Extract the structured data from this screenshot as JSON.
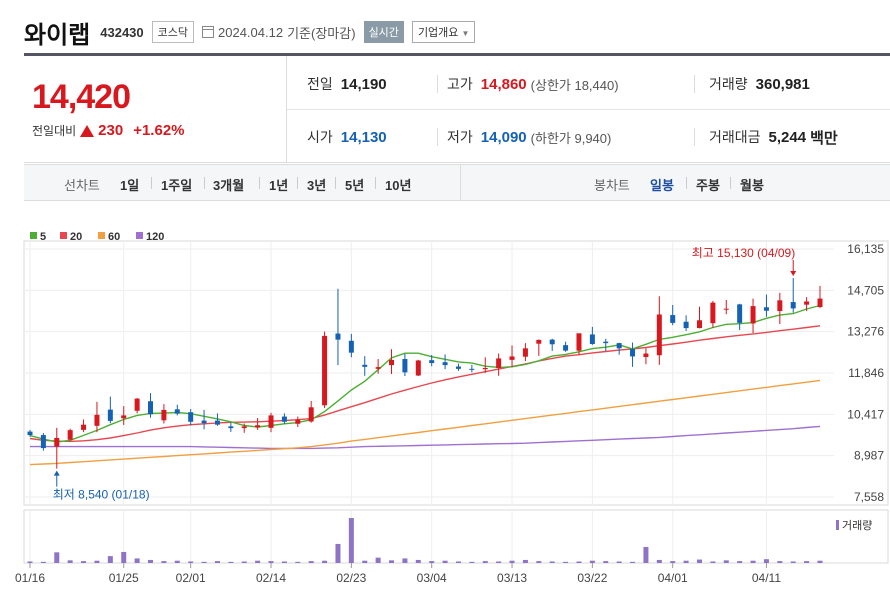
{
  "header": {
    "name": "와이랩",
    "code": "432430",
    "market": "코스닥",
    "date": "2024.04.12",
    "basis": "기준(장마감)",
    "realtime_label": "실시간",
    "company_label": "기업개요"
  },
  "quote": {
    "current": "14,420",
    "change_label": "전일대비",
    "change": "230",
    "change_pct": "+1.62%",
    "prev_close_label": "전일",
    "prev_close": "14,190",
    "high_label": "고가",
    "high": "14,860",
    "upper_limit_label": "(상한가 18,440)",
    "volume_label": "거래량",
    "volume": "360,981",
    "open_label": "시가",
    "open": "14,130",
    "low_label": "저가",
    "low": "14,090",
    "lower_limit_label": "(하한가 9,940)",
    "value_label": "거래대금",
    "value": "5,244",
    "value_unit": "백만"
  },
  "period_bar": {
    "line_label": "선차트",
    "line_periods": [
      "1일",
      "1주일",
      "3개월",
      "1년",
      "3년",
      "5년",
      "10년"
    ],
    "candle_label": "봉차트",
    "candle_periods": [
      "일봉",
      "주봉",
      "월봉"
    ],
    "active_candle": "일봉"
  },
  "colors": {
    "up": "#d7181e",
    "down": "#1561b3",
    "ma5": "#4caf34",
    "ma20": "#e8474f",
    "ma60": "#f0a040",
    "ma120": "#a070d0",
    "volume": "#8d74c7"
  },
  "chart_data": {
    "type": "candlestick",
    "legend": [
      "5",
      "20",
      "60",
      "120"
    ],
    "y_ticks": [
      "16,135",
      "14,705",
      "13,276",
      "11,846",
      "10,417",
      "8,987",
      "7,558"
    ],
    "ylim": [
      7558,
      16135
    ],
    "x_ticks": [
      "01/16",
      "01/25",
      "02/01",
      "02/14",
      "02/23",
      "03/04",
      "03/13",
      "03/22",
      "04/01",
      "04/11"
    ],
    "x_tick_index": [
      0,
      7,
      12,
      18,
      24,
      30,
      36,
      42,
      48,
      55
    ],
    "max_annotation": "최고 15,130 (04/09)",
    "min_annotation": "최저 8,540 (01/18)",
    "volume_label": "거래량",
    "candles": [
      {
        "o": 9820,
        "h": 9880,
        "l": 9640,
        "c": 9700
      },
      {
        "o": 9700,
        "h": 9770,
        "l": 9160,
        "c": 9250
      },
      {
        "o": 9300,
        "h": 9950,
        "l": 8540,
        "c": 9600
      },
      {
        "o": 9540,
        "h": 9920,
        "l": 9500,
        "c": 9870
      },
      {
        "o": 9880,
        "h": 10240,
        "l": 9800,
        "c": 10060
      },
      {
        "o": 10020,
        "h": 10850,
        "l": 9800,
        "c": 10400
      },
      {
        "o": 10580,
        "h": 11030,
        "l": 10110,
        "c": 10190
      },
      {
        "o": 10280,
        "h": 10700,
        "l": 10050,
        "c": 10380
      },
      {
        "o": 10540,
        "h": 10980,
        "l": 10450,
        "c": 10960
      },
      {
        "o": 10870,
        "h": 11150,
        "l": 10300,
        "c": 10420
      },
      {
        "o": 10210,
        "h": 10770,
        "l": 10100,
        "c": 10570
      },
      {
        "o": 10590,
        "h": 10750,
        "l": 10380,
        "c": 10440
      },
      {
        "o": 10490,
        "h": 10600,
        "l": 10030,
        "c": 10160
      },
      {
        "o": 10200,
        "h": 10570,
        "l": 9900,
        "c": 10110
      },
      {
        "o": 10200,
        "h": 10450,
        "l": 10020,
        "c": 10060
      },
      {
        "o": 10000,
        "h": 10130,
        "l": 9810,
        "c": 9940
      },
      {
        "o": 9940,
        "h": 10100,
        "l": 9780,
        "c": 10000
      },
      {
        "o": 9960,
        "h": 10290,
        "l": 9880,
        "c": 10040
      },
      {
        "o": 9950,
        "h": 10470,
        "l": 9800,
        "c": 10380
      },
      {
        "o": 10340,
        "h": 10450,
        "l": 10090,
        "c": 10160
      },
      {
        "o": 10090,
        "h": 10340,
        "l": 9980,
        "c": 10230
      },
      {
        "o": 10170,
        "h": 10880,
        "l": 10130,
        "c": 10660
      },
      {
        "o": 10730,
        "h": 13280,
        "l": 10640,
        "c": 13130
      },
      {
        "o": 13210,
        "h": 14760,
        "l": 12120,
        "c": 13000
      },
      {
        "o": 12960,
        "h": 13200,
        "l": 12390,
        "c": 12550
      },
      {
        "o": 12130,
        "h": 12430,
        "l": 11750,
        "c": 12060
      },
      {
        "o": 11990,
        "h": 12330,
        "l": 11820,
        "c": 12050
      },
      {
        "o": 12120,
        "h": 12670,
        "l": 11810,
        "c": 12300
      },
      {
        "o": 12330,
        "h": 12510,
        "l": 11740,
        "c": 11870
      },
      {
        "o": 11760,
        "h": 12300,
        "l": 11740,
        "c": 12280
      },
      {
        "o": 12290,
        "h": 12470,
        "l": 12080,
        "c": 12190
      },
      {
        "o": 12220,
        "h": 12490,
        "l": 11980,
        "c": 12120
      },
      {
        "o": 12070,
        "h": 12170,
        "l": 11920,
        "c": 11990
      },
      {
        "o": 11990,
        "h": 12130,
        "l": 11870,
        "c": 11980
      },
      {
        "o": 11980,
        "h": 12390,
        "l": 11850,
        "c": 12020
      },
      {
        "o": 12020,
        "h": 12520,
        "l": 11750,
        "c": 12350
      },
      {
        "o": 12300,
        "h": 12800,
        "l": 12050,
        "c": 12420
      },
      {
        "o": 12410,
        "h": 12880,
        "l": 12260,
        "c": 12700
      },
      {
        "o": 12860,
        "h": 13010,
        "l": 12440,
        "c": 12990
      },
      {
        "o": 13000,
        "h": 13030,
        "l": 12610,
        "c": 12840
      },
      {
        "o": 12810,
        "h": 12930,
        "l": 12580,
        "c": 12620
      },
      {
        "o": 12620,
        "h": 13200,
        "l": 12470,
        "c": 13220
      },
      {
        "o": 13180,
        "h": 13440,
        "l": 12820,
        "c": 12850
      },
      {
        "o": 12930,
        "h": 13030,
        "l": 12600,
        "c": 12880
      },
      {
        "o": 12880,
        "h": 12890,
        "l": 12480,
        "c": 12700
      },
      {
        "o": 12680,
        "h": 12900,
        "l": 12060,
        "c": 12420
      },
      {
        "o": 12400,
        "h": 12700,
        "l": 12150,
        "c": 12520
      },
      {
        "o": 12460,
        "h": 14500,
        "l": 12130,
        "c": 13870
      },
      {
        "o": 13850,
        "h": 14200,
        "l": 13500,
        "c": 13580
      },
      {
        "o": 13620,
        "h": 13840,
        "l": 13300,
        "c": 13400
      },
      {
        "o": 13400,
        "h": 14140,
        "l": 13390,
        "c": 13670
      },
      {
        "o": 13570,
        "h": 14340,
        "l": 13410,
        "c": 14280
      },
      {
        "o": 14070,
        "h": 14370,
        "l": 13880,
        "c": 14070
      },
      {
        "o": 14220,
        "h": 14240,
        "l": 13330,
        "c": 13580
      },
      {
        "o": 13560,
        "h": 14420,
        "l": 13230,
        "c": 14160
      },
      {
        "o": 14120,
        "h": 14560,
        "l": 13790,
        "c": 14000
      },
      {
        "o": 13990,
        "h": 14620,
        "l": 13540,
        "c": 14360
      },
      {
        "o": 14300,
        "h": 15130,
        "l": 13930,
        "c": 14080
      },
      {
        "o": 14210,
        "h": 14470,
        "l": 13990,
        "c": 14320
      },
      {
        "o": 14130,
        "h": 14860,
        "l": 14090,
        "c": 14420
      }
    ],
    "volumes": [
      4,
      3,
      28,
      7,
      5,
      6,
      18,
      29,
      12,
      8,
      5,
      6,
      4,
      3,
      5,
      3,
      4,
      6,
      5,
      4,
      3,
      5,
      6,
      50,
      118,
      6,
      14,
      7,
      12,
      8,
      5,
      6,
      4,
      3,
      5,
      4,
      6,
      8,
      5,
      4,
      3,
      4,
      6,
      5,
      4,
      3,
      42,
      8,
      5,
      6,
      9,
      4,
      7,
      5,
      6,
      10,
      5,
      4,
      5,
      6
    ],
    "ma5": [
      9680,
      9560,
      9460,
      9520,
      9690,
      9860,
      10060,
      10240,
      10380,
      10450,
      10460,
      10480,
      10440,
      10350,
      10260,
      10160,
      10030,
      9980,
      10030,
      10090,
      10130,
      10230,
      10510,
      10880,
      11260,
      11560,
      11960,
      12370,
      12530,
      12530,
      12410,
      12320,
      12230,
      12190,
      12080,
      12040,
      12060,
      12140,
      12270,
      12430,
      12490,
      12580,
      12690,
      12740,
      12820,
      12680,
      12840,
      13010,
      13080,
      13170,
      13270,
      13420,
      13530,
      13550,
      13590,
      13740,
      13850,
      13900,
      14060,
      14180
    ],
    "ma20": [
      9580,
      9520,
      9490,
      9480,
      9500,
      9540,
      9600,
      9680,
      9770,
      9870,
      9950,
      10010,
      10060,
      10090,
      10120,
      10140,
      10150,
      10160,
      10180,
      10200,
      10230,
      10270,
      10390,
      10540,
      10680,
      10820,
      10970,
      11120,
      11250,
      11380,
      11500,
      11610,
      11710,
      11800,
      11890,
      11980,
      12070,
      12160,
      12260,
      12350,
      12430,
      12480,
      12540,
      12590,
      12640,
      12680,
      12730,
      12790,
      12850,
      12910,
      12980,
      13040,
      13100,
      13150,
      13200,
      13250,
      13310,
      13360,
      13420,
      13480
    ],
    "ma60": [
      8680,
      8700,
      8720,
      8750,
      8780,
      8810,
      8840,
      8870,
      8900,
      8930,
      8960,
      8990,
      9020,
      9050,
      9080,
      9110,
      9140,
      9170,
      9200,
      9230,
      9260,
      9300,
      9360,
      9420,
      9490,
      9550,
      9610,
      9670,
      9730,
      9790,
      9850,
      9910,
      9970,
      10030,
      10090,
      10150,
      10210,
      10270,
      10330,
      10390,
      10450,
      10510,
      10570,
      10630,
      10690,
      10750,
      10810,
      10870,
      10930,
      10990,
      11050,
      11110,
      11170,
      11230,
      11290,
      11350,
      11410,
      11470,
      11530,
      11590
    ],
    "ma120": [
      9300,
      9300,
      9300,
      9300,
      9300,
      9300,
      9300,
      9300,
      9300,
      9300,
      9300,
      9300,
      9300,
      9290,
      9280,
      9270,
      9260,
      9250,
      9240,
      9240,
      9240,
      9240,
      9250,
      9260,
      9280,
      9300,
      9310,
      9320,
      9330,
      9340,
      9350,
      9360,
      9370,
      9380,
      9390,
      9400,
      9410,
      9420,
      9440,
      9460,
      9480,
      9500,
      9520,
      9540,
      9560,
      9580,
      9600,
      9620,
      9650,
      9680,
      9710,
      9740,
      9770,
      9800,
      9830,
      9860,
      9890,
      9920,
      9960,
      10000
    ]
  }
}
